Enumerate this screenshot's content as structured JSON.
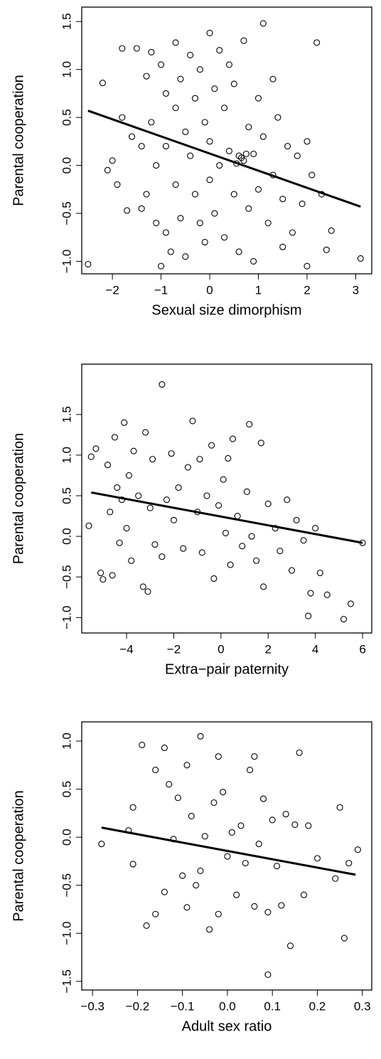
{
  "chart_data": [
    {
      "type": "scatter",
      "x_label": "Sexual size dimorphism",
      "y_label": "Parental cooperation",
      "x": [
        -2.5,
        -2.2,
        -2.1,
        -2.0,
        -1.9,
        -1.8,
        -1.8,
        -1.7,
        -1.6,
        -1.5,
        -1.4,
        -1.4,
        -1.3,
        -1.3,
        -1.2,
        -1.2,
        -1.1,
        -1.1,
        -1.0,
        -1.0,
        -0.9,
        -0.9,
        -0.9,
        -0.8,
        -0.7,
        -0.7,
        -0.7,
        -0.6,
        -0.6,
        -0.5,
        -0.5,
        -0.4,
        -0.4,
        -0.3,
        -0.3,
        -0.2,
        -0.2,
        -0.1,
        -0.1,
        0.0,
        0.0,
        0.0,
        0.1,
        0.1,
        0.2,
        0.2,
        0.3,
        0.3,
        0.4,
        0.4,
        0.5,
        0.5,
        0.6,
        0.6,
        0.7,
        0.7,
        0.8,
        0.8,
        0.9,
        0.9,
        1.0,
        1.0,
        1.1,
        1.1,
        1.2,
        1.3,
        1.3,
        1.4,
        1.5,
        1.5,
        1.6,
        1.7,
        1.8,
        1.9,
        2.0,
        2.0,
        2.1,
        2.2,
        2.3,
        2.4,
        2.5,
        3.1,
        0.65,
        0.75,
        0.55
      ],
      "values": [
        -1.03,
        0.86,
        -0.05,
        0.05,
        -0.2,
        1.22,
        0.5,
        -0.47,
        0.3,
        1.22,
        0.2,
        -0.45,
        0.93,
        -0.3,
        1.18,
        0.45,
        0.0,
        -0.6,
        1.05,
        -1.05,
        0.75,
        0.2,
        -0.7,
        -0.9,
        1.28,
        0.6,
        -0.2,
        0.9,
        -0.55,
        0.35,
        -0.95,
        1.15,
        0.1,
        -0.3,
        0.7,
        1.0,
        -0.6,
        0.45,
        -0.8,
        1.38,
        0.25,
        -0.15,
        0.8,
        -0.5,
        1.2,
        0.0,
        0.6,
        -0.75,
        1.05,
        0.15,
        -0.3,
        0.85,
        0.1,
        -0.9,
        0.05,
        1.3,
        0.4,
        -0.45,
        0.12,
        -1.0,
        0.7,
        -0.25,
        1.48,
        0.3,
        -0.6,
        0.9,
        -0.1,
        0.5,
        -0.35,
        -0.85,
        0.2,
        -0.7,
        0.1,
        -0.4,
        0.25,
        -1.05,
        -0.1,
        1.28,
        -0.3,
        -0.88,
        -0.68,
        -0.97,
        0.08,
        0.12,
        0.02
      ],
      "fit_x": [
        -2.5,
        3.1
      ],
      "fit_y": [
        0.57,
        -0.43
      ],
      "xlim": [
        -2.63,
        3.33
      ],
      "ylim": [
        -1.13,
        1.65
      ],
      "xticks": [
        {
          "value": -2,
          "label": "−2"
        },
        {
          "value": -1,
          "label": "−1"
        },
        0,
        1,
        2,
        3
      ],
      "yticks": [
        {
          "value": -1,
          "label": "−1.0"
        },
        {
          "value": -0.5,
          "label": "−0.5"
        },
        {
          "value": 0,
          "label": "0.0"
        },
        0.5,
        {
          "value": 1,
          "label": "1.0"
        },
        1.5
      ]
    },
    {
      "type": "scatter",
      "x_label": "Extra−pair paternity",
      "y_label": "Parental cooperation",
      "x": [
        -5.6,
        -5.5,
        -5.3,
        -5.1,
        -5.0,
        -4.8,
        -4.7,
        -4.6,
        -4.5,
        -4.4,
        -4.3,
        -4.2,
        -4.1,
        -4.0,
        -3.9,
        -3.8,
        -3.7,
        -3.5,
        -3.3,
        -3.2,
        -3.1,
        -3.0,
        -2.9,
        -2.8,
        -2.5,
        -2.5,
        -2.3,
        -2.1,
        -2.0,
        -1.8,
        -1.6,
        -1.4,
        -1.2,
        -1.0,
        -0.9,
        -0.8,
        -0.6,
        -0.4,
        -0.3,
        -0.1,
        0.1,
        0.2,
        0.3,
        0.4,
        0.5,
        0.7,
        0.9,
        1.1,
        1.2,
        1.3,
        1.5,
        1.7,
        1.8,
        2.0,
        2.3,
        2.5,
        2.8,
        3.0,
        3.2,
        3.5,
        3.7,
        3.8,
        4.0,
        4.2,
        4.5,
        5.2,
        5.5,
        6.0
      ],
      "values": [
        0.13,
        0.98,
        1.08,
        -0.45,
        -0.53,
        0.88,
        0.3,
        -0.48,
        1.22,
        0.6,
        -0.08,
        0.45,
        1.4,
        0.1,
        0.75,
        -0.3,
        1.05,
        0.5,
        -0.62,
        1.28,
        -0.68,
        0.35,
        0.95,
        -0.1,
        1.87,
        -0.25,
        0.45,
        1.02,
        0.2,
        0.6,
        -0.15,
        0.85,
        1.42,
        0.3,
        0.95,
        -0.2,
        0.5,
        1.12,
        -0.52,
        0.38,
        0.7,
        0.04,
        0.96,
        -0.35,
        1.2,
        0.25,
        -0.12,
        0.55,
        1.38,
        0.0,
        -0.3,
        1.15,
        -0.62,
        0.4,
        0.1,
        -0.18,
        0.45,
        -0.42,
        0.2,
        -0.05,
        -0.98,
        -0.7,
        0.1,
        -0.45,
        -0.72,
        -1.02,
        -0.83,
        -0.08
      ],
      "fit_x": [
        -5.5,
        6.0
      ],
      "fit_y": [
        0.54,
        -0.08
      ],
      "xlim": [
        -5.9,
        6.39
      ],
      "ylim": [
        -1.19,
        2.12
      ],
      "xticks": [
        {
          "value": -4,
          "label": "−4"
        },
        {
          "value": -2,
          "label": "−2"
        },
        0,
        2,
        4,
        6
      ],
      "yticks": [
        {
          "value": -1,
          "label": "−1.0"
        },
        {
          "value": -0.5,
          "label": "−0.5"
        },
        {
          "value": 0,
          "label": "0.0"
        },
        0.5,
        {
          "value": 1,
          "label": "1.0"
        },
        1.5
      ]
    },
    {
      "type": "scatter",
      "x_label": "Adult sex ratio",
      "y_label": "Parental cooperation",
      "x": [
        -0.28,
        -0.22,
        -0.21,
        -0.21,
        -0.19,
        -0.18,
        -0.16,
        -0.16,
        -0.14,
        -0.14,
        -0.13,
        -0.12,
        -0.11,
        -0.1,
        -0.09,
        -0.09,
        -0.08,
        -0.07,
        -0.06,
        -0.06,
        -0.05,
        -0.04,
        -0.03,
        -0.02,
        -0.02,
        -0.01,
        0.0,
        0.01,
        0.02,
        0.03,
        0.04,
        0.05,
        0.06,
        0.06,
        0.07,
        0.08,
        0.09,
        0.09,
        0.1,
        0.11,
        0.12,
        0.13,
        0.14,
        0.15,
        0.16,
        0.17,
        0.18,
        0.2,
        0.24,
        0.25,
        0.26,
        0.27,
        0.29
      ],
      "values": [
        -0.07,
        0.07,
        0.31,
        -0.28,
        0.96,
        -0.92,
        0.7,
        -0.8,
        0.93,
        -0.57,
        0.55,
        -0.02,
        0.41,
        -0.4,
        0.75,
        -0.73,
        0.22,
        -0.5,
        1.05,
        -0.35,
        0.01,
        -0.96,
        0.36,
        0.84,
        -0.8,
        0.47,
        -0.2,
        0.05,
        -0.6,
        0.12,
        -0.27,
        0.7,
        -0.72,
        0.84,
        -0.07,
        0.4,
        -1.43,
        -0.78,
        0.18,
        -0.3,
        -0.71,
        0.24,
        -1.13,
        0.13,
        0.88,
        -0.6,
        0.12,
        -0.22,
        -0.43,
        0.31,
        -1.05,
        -0.27,
        -0.13
      ],
      "fit_x": [
        -0.28,
        0.285
      ],
      "fit_y": [
        0.1,
        -0.39
      ],
      "xlim": [
        -0.324,
        0.321
      ],
      "ylim": [
        -1.59,
        1.2
      ],
      "xticks": [
        {
          "value": -0.3,
          "label": "−0.3"
        },
        {
          "value": -0.2,
          "label": "−0.2"
        },
        {
          "value": -0.1,
          "label": "−0.1"
        },
        {
          "value": 0,
          "label": "0.0"
        },
        0.1,
        0.2,
        0.3
      ],
      "yticks": [
        {
          "value": -1.5,
          "label": "−1.5"
        },
        {
          "value": -1,
          "label": "−1.0"
        },
        {
          "value": -0.5,
          "label": "−0.5"
        },
        {
          "value": 0,
          "label": "0.0"
        },
        0.5,
        {
          "value": 1,
          "label": "1.0"
        }
      ]
    }
  ]
}
